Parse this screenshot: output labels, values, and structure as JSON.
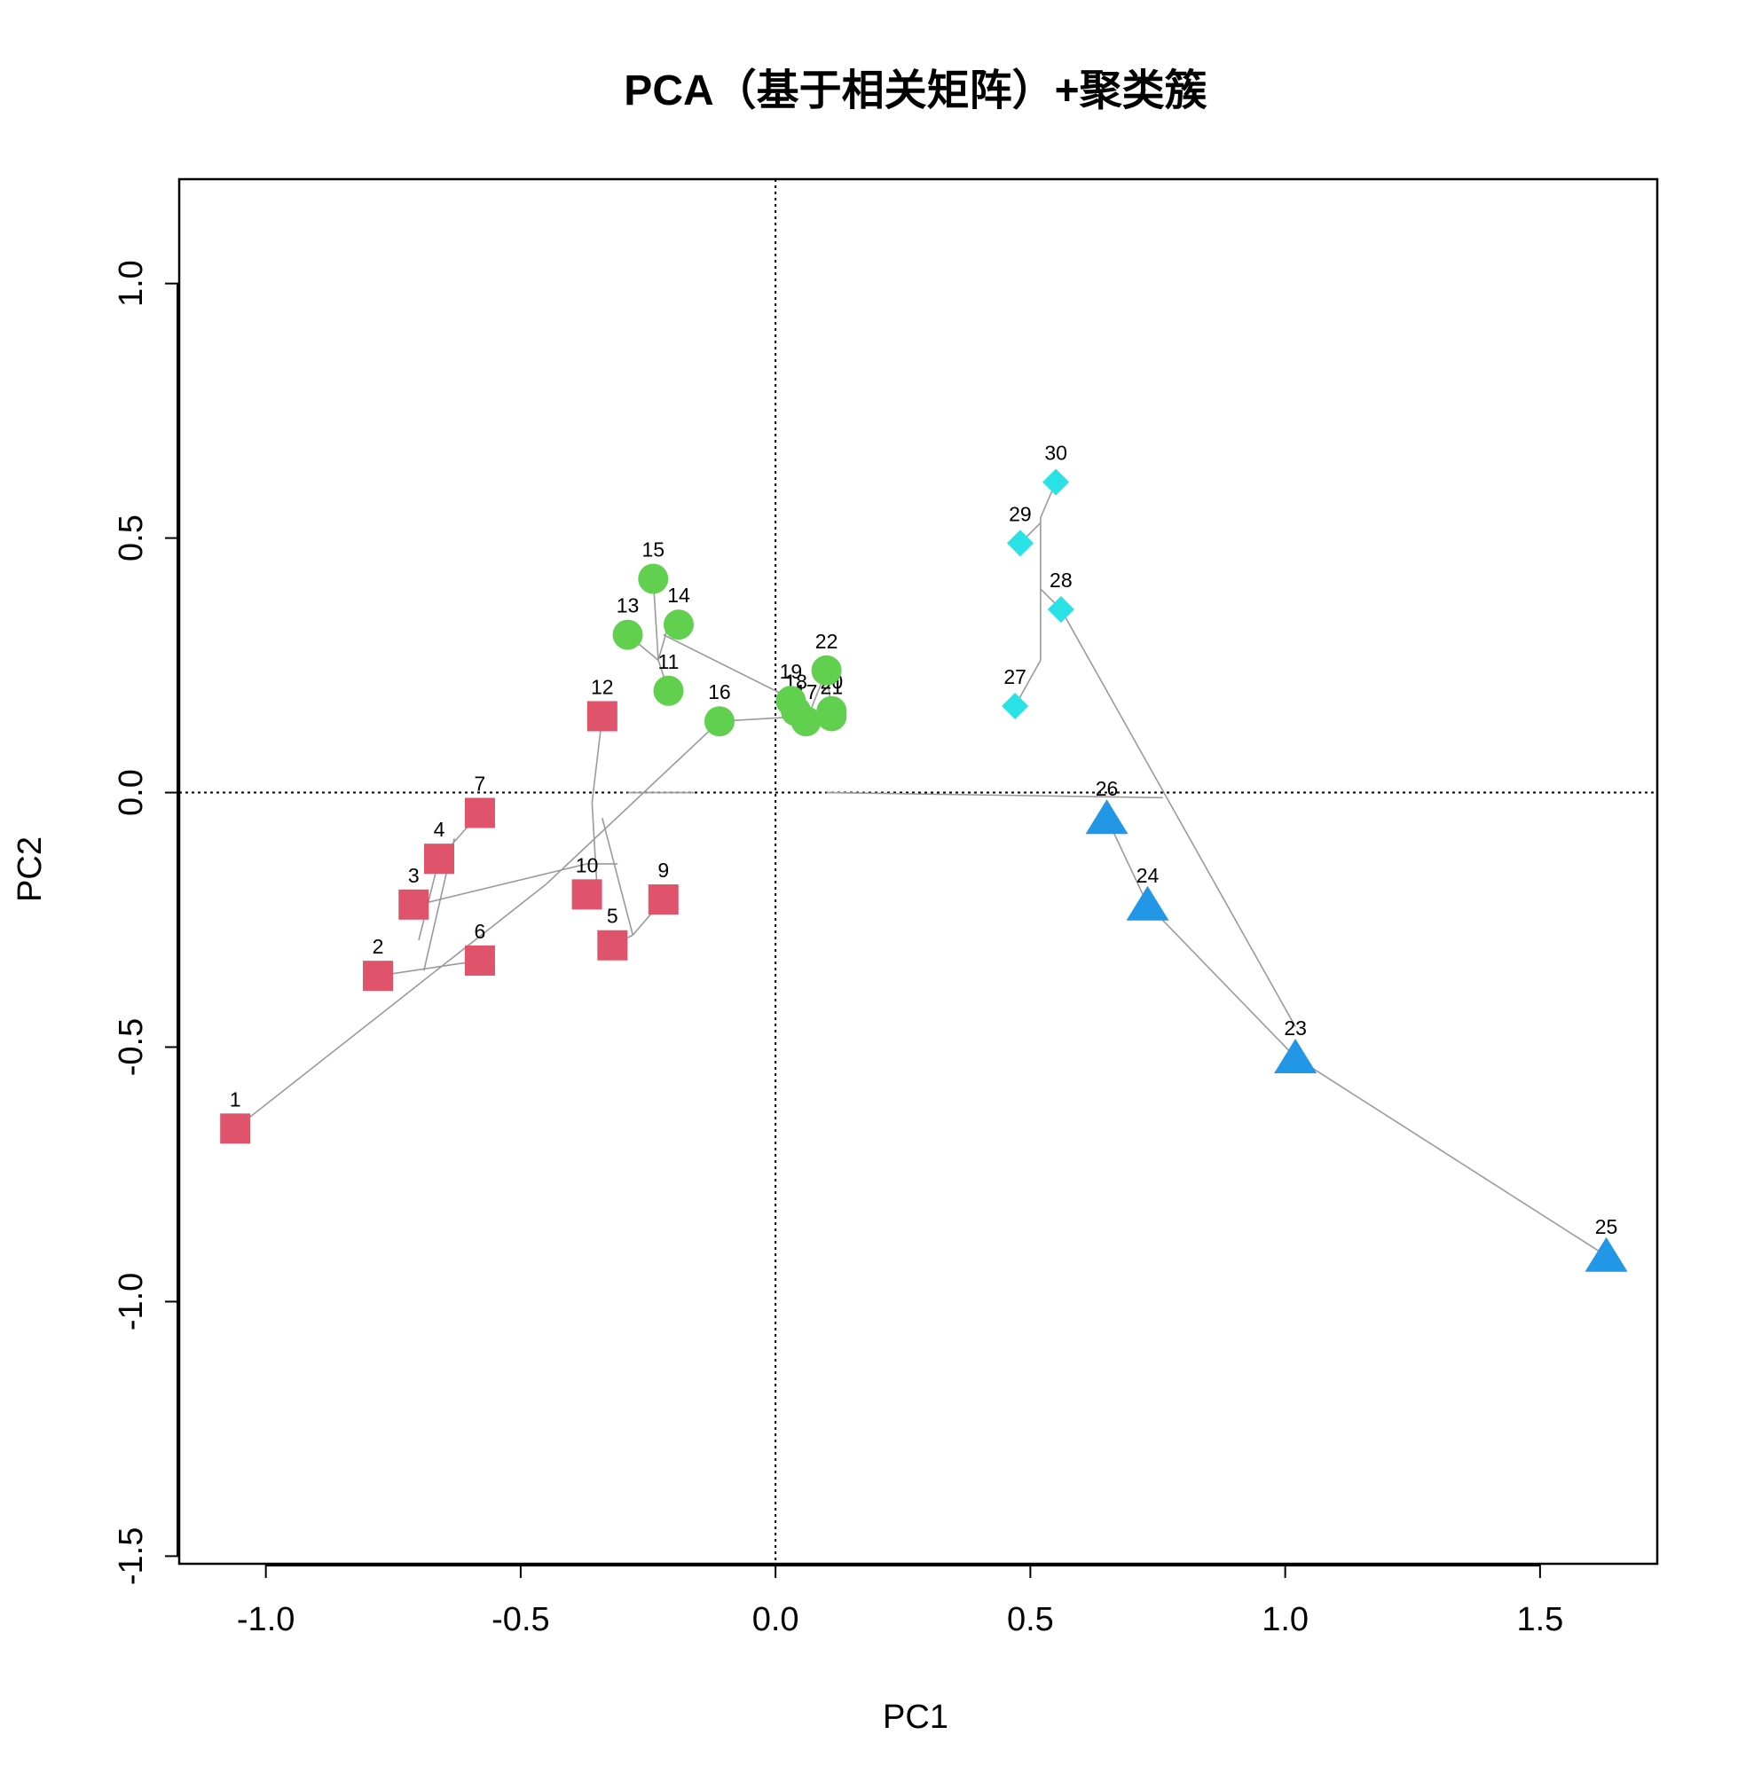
{
  "chart_data": {
    "type": "scatter",
    "title": "PCA（基于相关矩阵）+聚类簇",
    "xlabel": "PC1",
    "ylabel": "PC2",
    "xlim": [
      -1.17,
      1.73
    ],
    "ylim": [
      -1.515,
      1.205
    ],
    "xticks": [
      -1.0,
      -0.5,
      0.0,
      0.5,
      1.0,
      1.5
    ],
    "xtick_labels": [
      "-1.0",
      "-0.5",
      "0.0",
      "0.5",
      "1.0",
      "1.5"
    ],
    "yticks": [
      -1.5,
      -1.0,
      -0.5,
      0.0,
      0.5,
      1.0
    ],
    "ytick_labels": [
      "-1.5",
      "-1.0",
      "-0.5",
      "0.0",
      "0.5",
      "1.0"
    ],
    "reference_lines": {
      "x": 0,
      "y": 0,
      "style": "dotted"
    },
    "grid": false,
    "series": [
      {
        "cluster": 1,
        "marker": "square",
        "color": "#DF536B",
        "points": [
          {
            "label": "1",
            "x": -1.06,
            "y": -0.66
          },
          {
            "label": "2",
            "x": -0.78,
            "y": -0.36
          },
          {
            "label": "3",
            "x": -0.71,
            "y": -0.22
          },
          {
            "label": "4",
            "x": -0.66,
            "y": -0.13
          },
          {
            "label": "5",
            "x": -0.32,
            "y": -0.3
          },
          {
            "label": "6",
            "x": -0.58,
            "y": -0.33
          },
          {
            "label": "7",
            "x": -0.58,
            "y": -0.04
          },
          {
            "label": "9",
            "x": -0.22,
            "y": -0.21
          },
          {
            "label": "10",
            "x": -0.37,
            "y": -0.2
          },
          {
            "label": "12",
            "x": -0.34,
            "y": 0.15
          }
        ]
      },
      {
        "cluster": 2,
        "marker": "circle",
        "color": "#61D04F",
        "points": [
          {
            "label": "11",
            "x": -0.21,
            "y": 0.2
          },
          {
            "label": "13",
            "x": -0.29,
            "y": 0.31
          },
          {
            "label": "14",
            "x": -0.19,
            "y": 0.33
          },
          {
            "label": "15",
            "x": -0.24,
            "y": 0.42
          },
          {
            "label": "16",
            "x": -0.11,
            "y": 0.14
          },
          {
            "label": "17",
            "x": 0.06,
            "y": 0.14
          },
          {
            "label": "18",
            "x": 0.04,
            "y": 0.16
          },
          {
            "label": "19",
            "x": 0.03,
            "y": 0.18
          },
          {
            "label": "20",
            "x": 0.11,
            "y": 0.16
          },
          {
            "label": "21",
            "x": 0.11,
            "y": 0.15
          },
          {
            "label": "22",
            "x": 0.1,
            "y": 0.24
          }
        ]
      },
      {
        "cluster": 3,
        "marker": "triangle",
        "color": "#2297E6",
        "points": [
          {
            "label": "23",
            "x": 1.02,
            "y": -0.52
          },
          {
            "label": "24",
            "x": 0.73,
            "y": -0.22
          },
          {
            "label": "25",
            "x": 1.63,
            "y": -0.91
          },
          {
            "label": "26",
            "x": 0.65,
            "y": -0.05
          }
        ]
      },
      {
        "cluster": 4,
        "marker": "diamond",
        "color": "#28E2E5",
        "points": [
          {
            "label": "27",
            "x": 0.47,
            "y": 0.17
          },
          {
            "label": "28",
            "x": 0.56,
            "y": 0.36
          },
          {
            "label": "29",
            "x": 0.48,
            "y": 0.49
          },
          {
            "label": "30",
            "x": 0.55,
            "y": 0.61
          }
        ]
      }
    ],
    "dendrogram_segments": [
      [
        [
          -1.06,
          -0.66
        ],
        [
          -0.45,
          -0.18
        ]
      ],
      [
        [
          -0.45,
          -0.18
        ],
        [
          -0.11,
          0.14
        ]
      ],
      [
        [
          -0.78,
          -0.36
        ],
        [
          -0.58,
          -0.33
        ]
      ],
      [
        [
          -0.69,
          -0.35
        ],
        [
          -0.63,
          -0.09
        ]
      ],
      [
        [
          -0.66,
          -0.13
        ],
        [
          -0.58,
          -0.04
        ]
      ],
      [
        [
          -0.7,
          -0.22
        ],
        [
          -0.37,
          -0.14
        ]
      ],
      [
        [
          -0.7,
          -0.29
        ],
        [
          -0.66,
          -0.13
        ]
      ],
      [
        [
          -0.37,
          -0.14
        ],
        [
          -0.31,
          -0.14
        ]
      ],
      [
        [
          -0.35,
          -0.19
        ],
        [
          -0.36,
          -0.02
        ]
      ],
      [
        [
          -0.36,
          -0.02
        ],
        [
          -0.34,
          0.15
        ]
      ],
      [
        [
          -0.34,
          -0.05
        ],
        [
          -0.28,
          -0.28
        ]
      ],
      [
        [
          -0.28,
          -0.28
        ],
        [
          -0.22,
          -0.21
        ]
      ],
      [
        [
          -0.32,
          -0.3
        ],
        [
          -0.28,
          -0.28
        ]
      ],
      [
        [
          -0.29,
          0.0
        ],
        [
          -0.16,
          0.0
        ]
      ],
      [
        [
          -0.11,
          0.14
        ],
        [
          0.06,
          0.15
        ]
      ],
      [
        [
          -0.24,
          0.42
        ],
        [
          -0.23,
          0.26
        ]
      ],
      [
        [
          -0.29,
          0.31
        ],
        [
          -0.23,
          0.26
        ]
      ],
      [
        [
          -0.21,
          0.33
        ],
        [
          -0.23,
          0.26
        ]
      ],
      [
        [
          -0.23,
          0.26
        ],
        [
          -0.21,
          0.2
        ]
      ],
      [
        [
          -0.22,
          0.31
        ],
        [
          0.02,
          0.19
        ]
      ],
      [
        [
          0.02,
          0.19
        ],
        [
          0.04,
          0.16
        ]
      ],
      [
        [
          0.04,
          0.16
        ],
        [
          0.11,
          0.15
        ]
      ],
      [
        [
          0.06,
          0.14
        ],
        [
          0.1,
          0.24
        ]
      ],
      [
        [
          0.1,
          0.24
        ],
        [
          0.11,
          0.16
        ]
      ],
      [
        [
          0.1,
          0.0
        ],
        [
          0.76,
          -0.01
        ]
      ],
      [
        [
          0.65,
          -0.05
        ],
        [
          0.73,
          -0.22
        ]
      ],
      [
        [
          0.73,
          -0.22
        ],
        [
          1.02,
          -0.52
        ]
      ],
      [
        [
          1.02,
          -0.52
        ],
        [
          1.63,
          -0.91
        ]
      ],
      [
        [
          0.56,
          0.36
        ],
        [
          1.02,
          -0.46
        ]
      ],
      [
        [
          0.47,
          0.17
        ],
        [
          0.52,
          0.26
        ]
      ],
      [
        [
          0.52,
          0.26
        ],
        [
          0.52,
          0.54
        ]
      ],
      [
        [
          0.52,
          0.54
        ],
        [
          0.55,
          0.61
        ]
      ],
      [
        [
          0.52,
          0.4
        ],
        [
          0.56,
          0.36
        ]
      ],
      [
        [
          0.48,
          0.49
        ],
        [
          0.52,
          0.53
        ]
      ]
    ]
  }
}
